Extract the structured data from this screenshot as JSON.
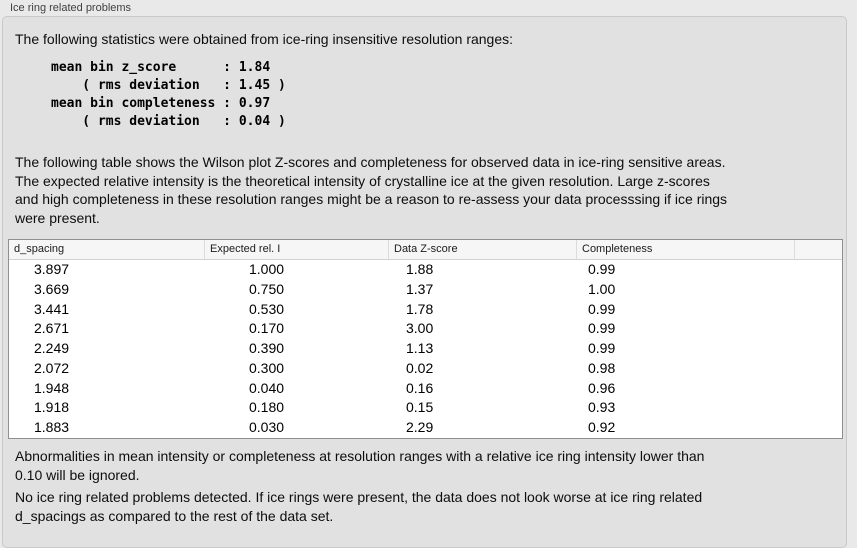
{
  "window": {
    "group_label": "Ice ring related problems"
  },
  "panel": {
    "intro": "The following statistics were obtained from ice-ring insensitive resolution ranges:",
    "stats_lines": [
      "mean bin z_score      : 1.84",
      "    ( rms deviation   : 1.45 )",
      "mean bin completeness : 0.97",
      "    ( rms deviation   : 0.04 )"
    ],
    "description_lines": [
      "The following table shows the Wilson plot Z-scores and completeness for observed data in ice-ring sensitive areas.",
      "The expected relative intensity is the theoretical intensity of crystalline ice at the given resolution. Large z-scores",
      "and high completeness in these resolution ranges might be a reason to re-assess your data processsing if ice rings",
      "were present."
    ],
    "table": {
      "columns": [
        "d_spacing",
        "Expected rel. I",
        "Data Z-score",
        "Completeness"
      ],
      "rows": [
        [
          "3.897",
          "1.000",
          "1.88",
          "0.99"
        ],
        [
          "3.669",
          "0.750",
          "1.37",
          "1.00"
        ],
        [
          "3.441",
          "0.530",
          "1.78",
          "0.99"
        ],
        [
          "2.671",
          "0.170",
          "3.00",
          "0.99"
        ],
        [
          "2.249",
          "0.390",
          "1.13",
          "0.99"
        ],
        [
          "2.072",
          "0.300",
          "0.02",
          "0.98"
        ],
        [
          "1.948",
          "0.040",
          "0.16",
          "0.96"
        ],
        [
          "1.918",
          "0.180",
          "0.15",
          "0.93"
        ],
        [
          "1.883",
          "0.030",
          "2.29",
          "0.92"
        ]
      ]
    },
    "note_lines": [
      "Abnormalities in mean intensity or completeness at resolution ranges with a relative ice ring intensity lower than",
      "0.10 will be ignored."
    ],
    "conclusion_lines": [
      "No ice ring related problems detected. If ice rings were present, the data does not look worse at ice ring related",
      "d_spacings as compared to the rest of the data set."
    ]
  },
  "colors": {
    "page_background": "#e9e9e9",
    "panel_background": "#e1e1e1",
    "panel_border": "#c9c9c9",
    "table_background": "#ffffff",
    "table_border": "#8f8f8f",
    "header_background": "#f6f6f6",
    "text": "#0d0d0d"
  }
}
